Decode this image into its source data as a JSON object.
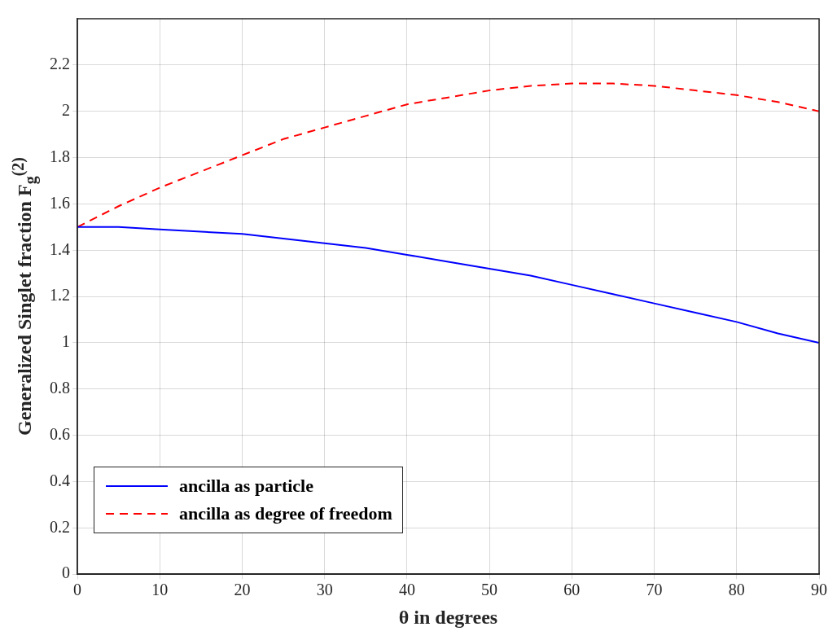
{
  "chart_data": {
    "type": "line",
    "xlabel": "θ in degrees",
    "ylabel": "Generalized Singlet fraction F$_{g}$$^{(2)}$",
    "x": [
      0,
      5,
      10,
      15,
      20,
      25,
      30,
      35,
      40,
      45,
      50,
      55,
      60,
      65,
      70,
      75,
      80,
      85,
      90
    ],
    "series": [
      {
        "name": "ancilla as particle",
        "color": "#0000ff",
        "line_style": "solid",
        "values": [
          1.5,
          1.5,
          1.49,
          1.48,
          1.47,
          1.45,
          1.43,
          1.41,
          1.38,
          1.35,
          1.32,
          1.29,
          1.25,
          1.21,
          1.17,
          1.13,
          1.09,
          1.04,
          1.0
        ]
      },
      {
        "name": "ancilla as degree of freedom",
        "color": "#ff0000",
        "line_style": "dashed",
        "values": [
          1.5,
          1.59,
          1.67,
          1.74,
          1.81,
          1.88,
          1.93,
          1.98,
          2.03,
          2.06,
          2.09,
          2.11,
          2.12,
          2.12,
          2.11,
          2.09,
          2.07,
          2.04,
          2.0
        ]
      }
    ],
    "xlim": [
      0,
      90
    ],
    "xticks": [
      0,
      10,
      20,
      30,
      40,
      50,
      60,
      70,
      80,
      90
    ],
    "ylim": [
      0,
      2.4
    ],
    "yticks": [
      0,
      0.2,
      0.4,
      0.6,
      0.8,
      1,
      1.2,
      1.4,
      1.6,
      1.8,
      2,
      2.2
    ],
    "grid": true,
    "legend": "bottom left",
    "marker": "none"
  }
}
